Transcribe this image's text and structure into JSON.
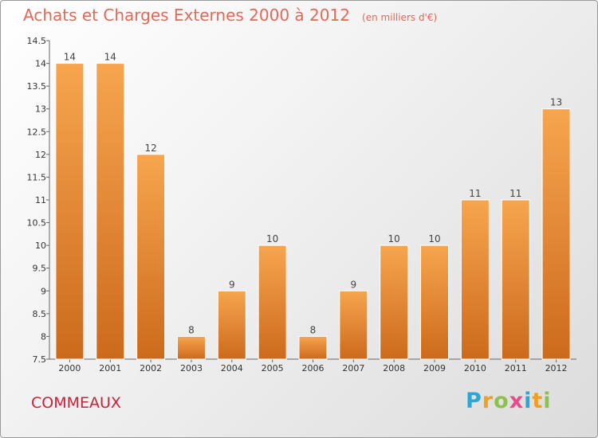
{
  "header": {
    "title": "Achats et Charges Externes 2000 à 2012",
    "unit": "(en milliers d'€)"
  },
  "footer": {
    "commune": "COMMEAUX",
    "logo": [
      "P",
      "r",
      "o",
      "x",
      "i",
      "t",
      "i"
    ],
    "logo_colors": [
      "#2aa7d8",
      "#f0a020",
      "#8bc34a",
      "#e94b8a",
      "#2aa7d8",
      "#f0a020",
      "#8bc34a"
    ]
  },
  "colors": {
    "bar_light": "#f7a54f",
    "bar_dark": "#cc6a1c",
    "title": "#e06a5a",
    "commune": "#c8233b"
  },
  "chart_data": {
    "type": "bar",
    "categories": [
      "2000",
      "2001",
      "2002",
      "2003",
      "2004",
      "2005",
      "2006",
      "2007",
      "2008",
      "2009",
      "2010",
      "2011",
      "2012"
    ],
    "values": [
      14,
      14,
      12,
      8,
      9,
      10,
      8,
      9,
      10,
      10,
      11,
      11,
      13
    ],
    "title": "Achats et Charges Externes 2000 à 2012",
    "subtitle": "(en milliers d'€)",
    "xlabel": "",
    "ylabel": "",
    "ylim": [
      7.5,
      14.5
    ],
    "yticks": [
      "7.5",
      "8",
      "8.5",
      "9",
      "9.5",
      "10",
      "10.5",
      "11",
      "11.5",
      "12",
      "12.5",
      "13",
      "13.5",
      "14",
      "14.5"
    ],
    "grid": false,
    "legend": "none"
  }
}
